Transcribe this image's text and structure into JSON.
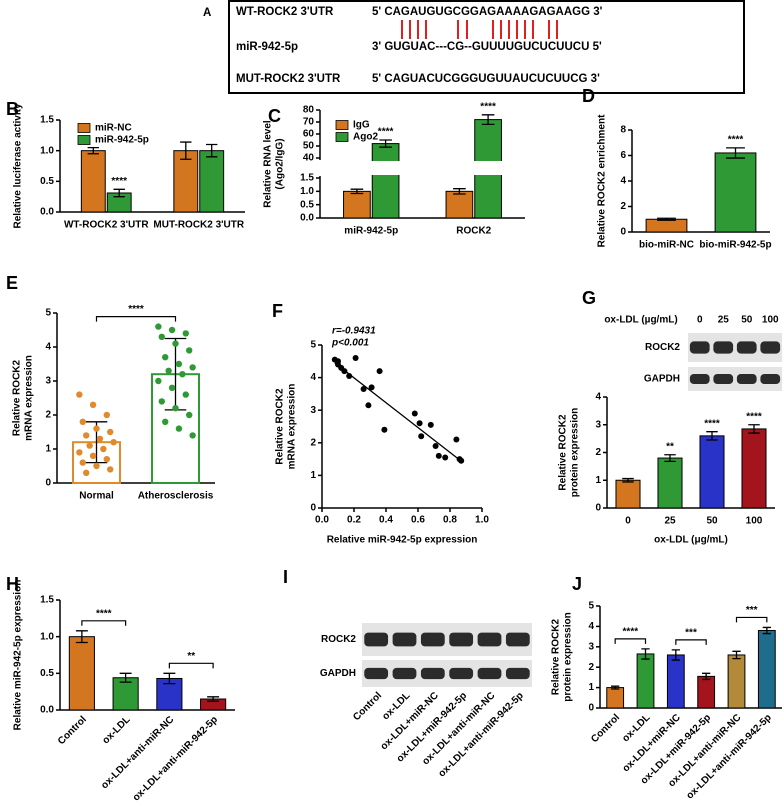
{
  "sequence_alignment": {
    "panel": "A",
    "rows": [
      {
        "label": "WT-ROCK2 3'UTR",
        "sequence": "5' CAGAUGUGCGGAGAAAAGAGAAGG 3'"
      },
      {
        "label": "miR-942-5p",
        "sequence": "3' GUGUAC---CG--GUUUUGUCUCUUCU 5'"
      },
      {
        "label": "MUT-ROCK2 3'UTR",
        "sequence": "5' CAGUACUCGGGUGUUAUCUCUUCG 3'"
      }
    ]
  },
  "blots": [
    {
      "panel": "G",
      "header": "ox-LDL (µg/mL)",
      "lanes": [
        "0",
        "25",
        "50",
        "100"
      ],
      "rows": [
        "ROCK2",
        "GAPDH"
      ]
    },
    {
      "panel": "I",
      "lanes": [
        "Control",
        "ox-LDL",
        "ox-LDL+miR-NC",
        "ox-LDL+miR-942-5p",
        "ox-LDL+anti-miR-NC",
        "ox-LDL+anti-miR-942-5p"
      ],
      "rows": [
        "ROCK2",
        "GAPDH"
      ]
    }
  ],
  "chart_data": [
    {
      "type": "bar",
      "panel": "B",
      "ylabel": "Relative luciferase activity",
      "categories": [
        "WT-ROCK2 3'UTR",
        "MUT-ROCK2 3'UTR"
      ],
      "series": [
        {
          "name": "miR-NC",
          "color": "#d4761f",
          "values": [
            1.0,
            1.0
          ],
          "errors": [
            0.05,
            0.14
          ],
          "significance": [
            null,
            null
          ]
        },
        {
          "name": "miR-942-5p",
          "color": "#2f9a35",
          "values": [
            0.31,
            1.0
          ],
          "errors": [
            0.06,
            0.1
          ],
          "significance": [
            "****",
            null
          ]
        }
      ],
      "ylim": [
        0,
        1.5
      ],
      "yticks": [
        {
          "value": 0,
          "label": "0.0"
        },
        0.5,
        {
          "value": 1,
          "label": "1.0"
        },
        1.5
      ],
      "legend": "upper left"
    },
    {
      "type": "bar",
      "panel": "C",
      "ylabel": [
        "Relative RNA level",
        "(Ago2/IgG)"
      ],
      "categories": [
        "miR-942-5p",
        "ROCK2"
      ],
      "series": [
        {
          "name": "IgG",
          "color": "#d4761f",
          "values": [
            1.0,
            1.0
          ],
          "errors": [
            0.08,
            0.1
          ],
          "significance": [
            null,
            null
          ]
        },
        {
          "name": "Ago2",
          "color": "#2f9a35",
          "values": [
            52,
            72
          ],
          "errors": [
            3,
            4
          ],
          "significance": [
            "****",
            "****"
          ]
        }
      ],
      "ylim": [
        0,
        80
      ],
      "ybreak": [
        1.5,
        40
      ],
      "yticks": [
        {
          "value": 0,
          "label": "0.0"
        },
        0.5,
        {
          "value": 1,
          "label": "1.0"
        },
        1.5,
        40,
        50,
        60,
        70,
        80
      ],
      "legend": "upper left"
    },
    {
      "type": "bar",
      "panel": "D",
      "ylabel": "Relative ROCK2 enrichment",
      "categories": [
        "bio-miR-NC",
        "bio-miR-942-5p"
      ],
      "series": [
        {
          "colors": [
            "#d4761f",
            "#2f9a35"
          ],
          "values": [
            1.0,
            6.2
          ],
          "errors": [
            0.08,
            0.4
          ],
          "significance": [
            null,
            "****"
          ]
        }
      ],
      "ylim": [
        0,
        8
      ],
      "yticks": [
        0,
        2,
        4,
        6,
        8
      ]
    },
    {
      "type": "bar",
      "panel": "E",
      "ylabel": [
        "Relative ROCK2",
        "mRNA expression"
      ],
      "bar_style": "outline",
      "categories": [
        "Normal",
        "Atherosclerosis"
      ],
      "series": [
        {
          "colors": [
            "#e08a2c",
            "#2f9a35"
          ],
          "values": [
            1.2,
            3.2
          ],
          "errors": [
            0.6,
            1.05
          ],
          "points": [
            [
              2.6,
              2.3,
              2.0,
              1.8,
              1.6,
              1.5,
              1.4,
              1.3,
              1.2,
              1.1,
              1.0,
              0.9,
              0.8,
              0.7,
              0.6,
              0.5,
              0.4,
              0.3
            ],
            [
              4.6,
              4.5,
              4.4,
              4.3,
              4.1,
              3.9,
              3.7,
              3.5,
              3.4,
              3.3,
              3.2,
              3.0,
              2.8,
              2.6,
              2.4,
              2.2,
              2.0,
              1.8,
              1.6,
              1.4
            ]
          ]
        }
      ],
      "brackets": [
        {
          "pair": [
            0,
            1
          ],
          "label": "****"
        }
      ],
      "ylim": [
        0,
        5
      ],
      "yticks": [
        0,
        1,
        2,
        3,
        4,
        5
      ]
    },
    {
      "type": "scatter",
      "panel": "F",
      "ylabel": [
        "Relative ROCK2",
        "mRNA expression"
      ],
      "xlabel": "Relative miR-942-5p expression",
      "annotations": [
        "r=-0.9431",
        "p<0.001"
      ],
      "x": [
        0.08,
        0.1,
        0.12,
        0.14,
        0.1,
        0.17,
        0.21,
        0.26,
        0.29,
        0.31,
        0.36,
        0.39,
        0.58,
        0.61,
        0.62,
        0.68,
        0.71,
        0.73,
        0.77,
        0.84,
        0.86,
        0.87
      ],
      "values": [
        4.55,
        4.5,
        4.3,
        4.2,
        4.4,
        4.05,
        4.6,
        3.65,
        3.15,
        3.7,
        4.2,
        2.4,
        2.9,
        2.6,
        2.2,
        2.55,
        1.9,
        1.6,
        1.55,
        2.1,
        1.5,
        1.45
      ],
      "fit_line": {
        "x": [
          0.08,
          0.88
        ],
        "y": [
          4.45,
          1.4
        ]
      },
      "color": "#000000",
      "xlim": [
        0,
        1
      ],
      "xticks": [
        {
          "value": 0,
          "label": "0.0"
        },
        0.2,
        0.4,
        0.6,
        0.8,
        {
          "value": 1,
          "label": "1.0"
        }
      ],
      "ylim": [
        0,
        5
      ],
      "yticks": [
        0,
        1,
        2,
        3,
        4,
        5
      ]
    },
    {
      "type": "bar",
      "panel": "G",
      "ylabel": [
        "Relative ROCK2",
        "protein expression"
      ],
      "xlabel": "ox-LDL (μg/mL)",
      "categories": [
        "0",
        "25",
        "50",
        "100"
      ],
      "series": [
        {
          "colors": [
            "#d4761f",
            "#2f9a35",
            "#2a33c8",
            "#a3141c"
          ],
          "values": [
            1.0,
            1.8,
            2.6,
            2.85
          ],
          "errors": [
            0.06,
            0.12,
            0.15,
            0.15
          ],
          "significance": [
            null,
            "**",
            "****",
            "****"
          ]
        }
      ],
      "ylim": [
        0,
        4
      ],
      "yticks": [
        0,
        1,
        2,
        3,
        4
      ]
    },
    {
      "type": "bar",
      "panel": "H",
      "ylabel": "Relative miR-942-5p expression",
      "categories": [
        "Control",
        "ox-LDL",
        "ox-LDL+anti-miR-NC",
        "ox-LDL+anti-miR-942-5p"
      ],
      "series": [
        {
          "colors": [
            "#d4761f",
            "#2f9a35",
            "#2a33c8",
            "#a3141c"
          ],
          "values": [
            1.0,
            0.44,
            0.43,
            0.15
          ],
          "errors": [
            0.08,
            0.06,
            0.07,
            0.03
          ]
        }
      ],
      "brackets": [
        {
          "pair": [
            0,
            1
          ],
          "label": "****"
        },
        {
          "pair": [
            2,
            3
          ],
          "label": "**"
        }
      ],
      "ylim": [
        0,
        1.5
      ],
      "yticks": [
        {
          "value": 0,
          "label": "0.0"
        },
        0.5,
        {
          "value": 1,
          "label": "1.0"
        },
        1.5
      ]
    },
    {
      "type": "bar",
      "panel": "J",
      "ylabel": [
        "Relative ROCK2",
        "protein expression"
      ],
      "categories": [
        "Control",
        "ox-LDL",
        "ox-LDL+miR-NC",
        "ox-LDL+miR-942-5p",
        "ox-LDL+anti-miR-NC",
        "ox-LDL+anti-miR-942-5p"
      ],
      "series": [
        {
          "colors": [
            "#d4761f",
            "#2f9a35",
            "#2a33c8",
            "#a3141c",
            "#b3893a",
            "#1f6d8c"
          ],
          "values": [
            1.0,
            2.65,
            2.6,
            1.55,
            2.6,
            3.8
          ],
          "errors": [
            0.07,
            0.25,
            0.25,
            0.15,
            0.18,
            0.15
          ]
        }
      ],
      "brackets": [
        {
          "pair": [
            0,
            1
          ],
          "label": "****"
        },
        {
          "pair": [
            2,
            3
          ],
          "label": "***"
        },
        {
          "pair": [
            4,
            5
          ],
          "label": "***"
        }
      ],
      "ylim": [
        0,
        5
      ],
      "yticks": [
        0,
        1,
        2,
        3,
        4,
        5
      ]
    }
  ]
}
